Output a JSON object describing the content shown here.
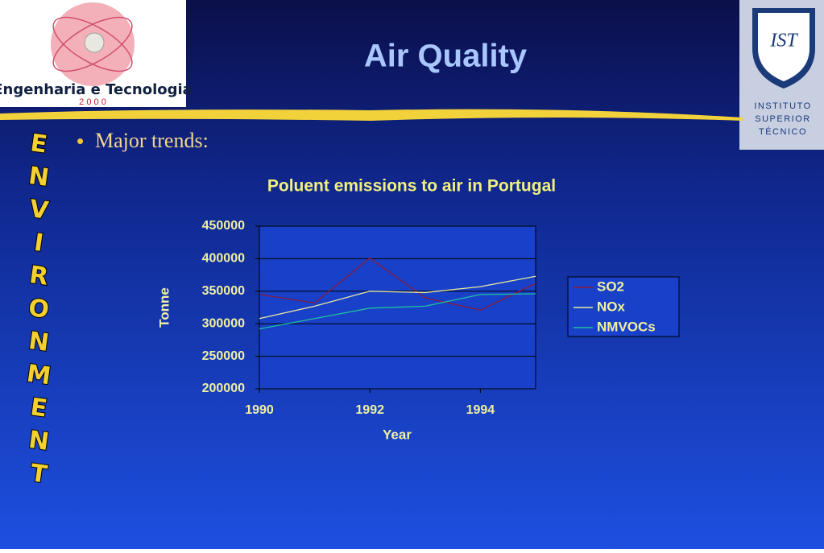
{
  "header": {
    "title": "Air Quality",
    "left_logo": {
      "name": "Engenharia e Tecnologia",
      "year": "2 0 0 0"
    },
    "right_logo": {
      "mark": "IST",
      "lines": [
        "INSTITUTO",
        "SUPERIOR",
        "TÉCNICO"
      ]
    }
  },
  "side_word": [
    "E",
    "N",
    "V",
    "I",
    "R",
    "O",
    "N",
    "M",
    "E",
    "N",
    "T"
  ],
  "bullet": "Major trends:",
  "chart_data": {
    "type": "line",
    "title": "Poluent emissions to air in Portugal",
    "x_label": "Year",
    "y_label": "Tonne",
    "x": [
      1990,
      1991,
      1992,
      1993,
      1994,
      1995
    ],
    "series": [
      {
        "name": "SO2",
        "color": "#8b1a3a",
        "values": [
          345000,
          332000,
          401000,
          340000,
          321000,
          362000
        ]
      },
      {
        "name": "NOx",
        "color": "#e8e8a0",
        "values": [
          308000,
          327000,
          350000,
          348000,
          357000,
          373000
        ]
      },
      {
        "name": "NMVOCs",
        "color": "#20c0a0",
        "values": [
          292000,
          308000,
          324000,
          327000,
          345000,
          346000
        ]
      }
    ],
    "xlim": [
      1990,
      1995
    ],
    "xticks": [
      1990,
      1992,
      1994
    ],
    "ylim": [
      200000,
      450000
    ],
    "yticks": [
      200000,
      250000,
      300000,
      350000,
      400000,
      450000
    ],
    "grid": true,
    "legend": "right"
  }
}
